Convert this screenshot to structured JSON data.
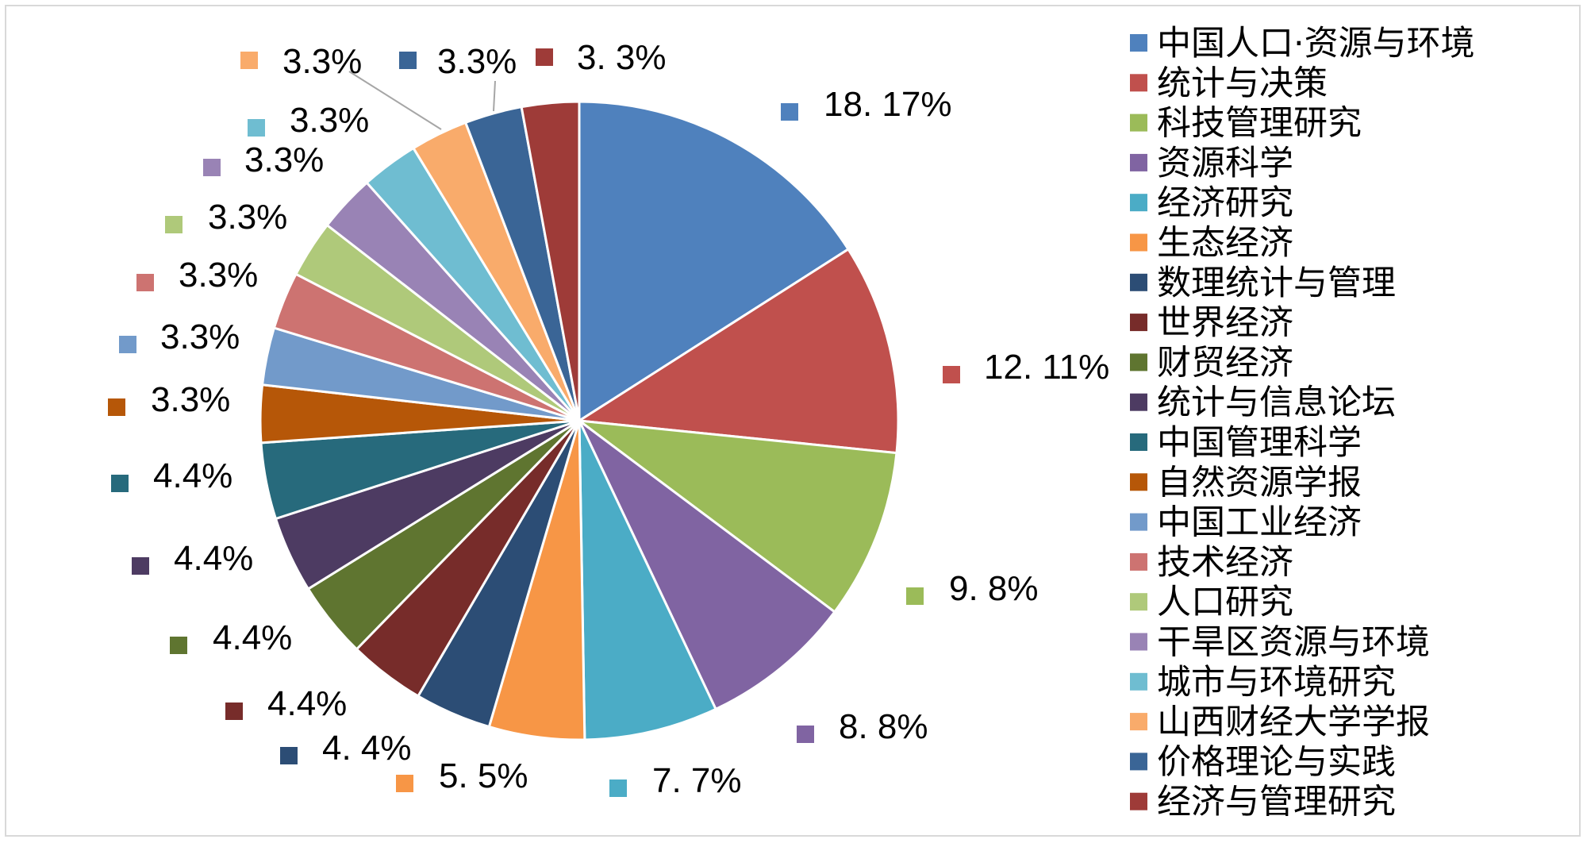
{
  "chart_data": {
    "type": "pie",
    "start": "top",
    "direction": "clockwise",
    "legend_position": "right",
    "slices": [
      {
        "name": "中国人口·资源与环境",
        "value": 18.17,
        "label": "18. 17%",
        "color": "#4F81BD"
      },
      {
        "name": "统计与决策",
        "value": 12.11,
        "label": "12. 11%",
        "color": "#C0504D"
      },
      {
        "name": "科技管理研究",
        "value": 9.8,
        "label": "9. 8%",
        "color": "#9BBB59"
      },
      {
        "name": "资源科学",
        "value": 8.8,
        "label": "8. 8%",
        "color": "#8064A2"
      },
      {
        "name": "经济研究",
        "value": 7.7,
        "label": "7. 7%",
        "color": "#4BACC6"
      },
      {
        "name": "生态经济",
        "value": 5.5,
        "label": "5. 5%",
        "color": "#F79646"
      },
      {
        "name": "数理统计与管理",
        "value": 4.4,
        "label": "4. 4%",
        "color": "#2C4D75"
      },
      {
        "name": "世界经济",
        "value": 4.4,
        "label": "4.4%",
        "color": "#772C2A"
      },
      {
        "name": "财贸经济",
        "value": 4.4,
        "label": "4.4%",
        "color": "#5F7530"
      },
      {
        "name": "统计与信息论坛",
        "value": 4.4,
        "label": "4.4%",
        "color": "#4D3B62"
      },
      {
        "name": "中国管理科学",
        "value": 4.4,
        "label": "4.4%",
        "color": "#276A7C"
      },
      {
        "name": "自然资源学报",
        "value": 3.3,
        "label": "3.3%",
        "color": "#B65708"
      },
      {
        "name": "中国工业经济",
        "value": 3.3,
        "label": "3.3%",
        "color": "#729ACA"
      },
      {
        "name": "技术经济",
        "value": 3.3,
        "label": "3.3%",
        "color": "#CD7371"
      },
      {
        "name": "人口研究",
        "value": 3.3,
        "label": "3.3%",
        "color": "#AFC97A"
      },
      {
        "name": "干旱区资源与环境",
        "value": 3.3,
        "label": "3.3%",
        "color": "#9983B5"
      },
      {
        "name": "城市与环境研究",
        "value": 3.3,
        "label": "3.3%",
        "color": "#6FBDD1"
      },
      {
        "name": "山西财经大学学报",
        "value": 3.3,
        "label": "3.3%",
        "color": "#F9AB6B"
      },
      {
        "name": "价格理论与实践",
        "value": 3.3,
        "label": "3.3%",
        "color": "#3A6596"
      },
      {
        "name": "经济与管理研究",
        "value": 3.3,
        "label": "3. 3%",
        "color": "#9E3B38"
      }
    ]
  }
}
